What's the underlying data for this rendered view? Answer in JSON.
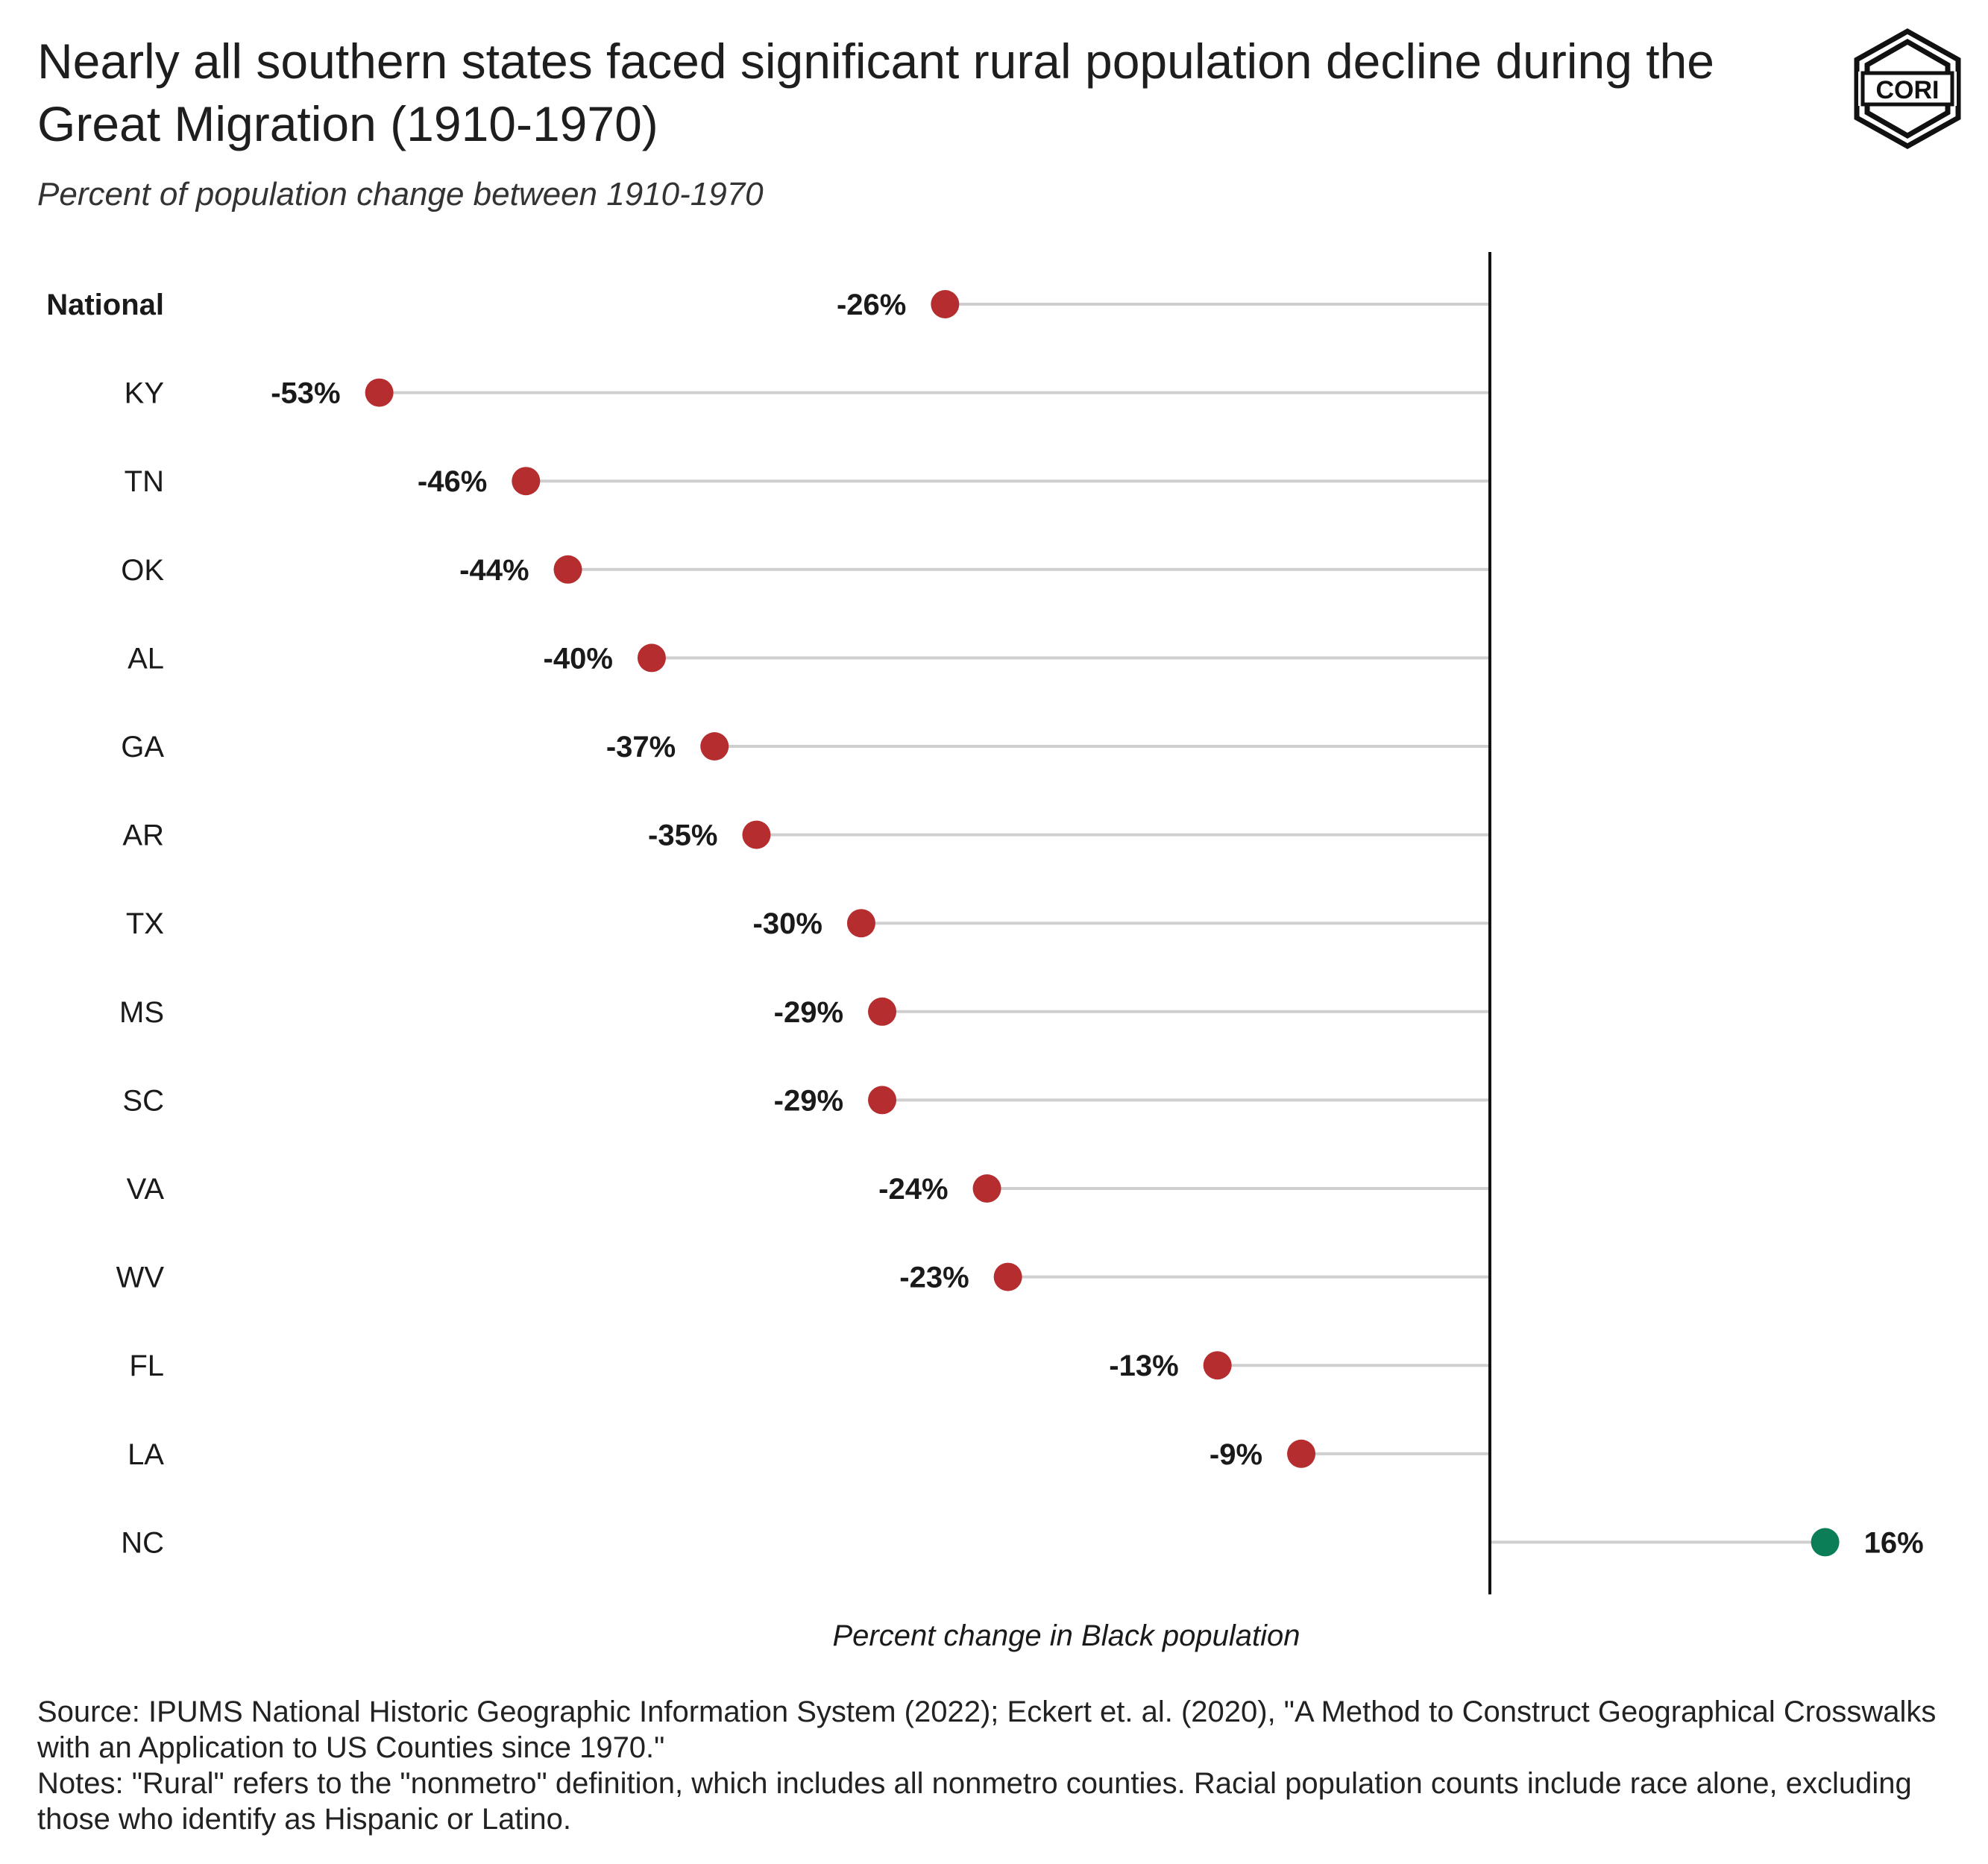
{
  "title": "Nearly all southern states faced significant rural population decline during the Great Migration (1910-1970)",
  "subtitle": "Percent of population change between 1910-1970",
  "logo_text": "CORI",
  "colors": {
    "negative": "#b52d2f",
    "positive": "#0b7d57",
    "gridline": "#cfcfcf",
    "zero_line": "#111111",
    "text": "#1a1a1a"
  },
  "chart_data": {
    "type": "dot",
    "xlabel": "Percent change in Black population",
    "categories": [
      "National",
      "KY",
      "TN",
      "OK",
      "AL",
      "GA",
      "AR",
      "TX",
      "MS",
      "SC",
      "VA",
      "WV",
      "FL",
      "LA",
      "NC"
    ],
    "values": [
      -26,
      -53,
      -46,
      -44,
      -40,
      -37,
      -35,
      -30,
      -29,
      -29,
      -24,
      -23,
      -13,
      -9,
      16
    ],
    "labels": [
      "-26%",
      "-53%",
      "-46%",
      "-44%",
      "-40%",
      "-37%",
      "-35%",
      "-30%",
      "-29%",
      "-29%",
      "-24%",
      "-23%",
      "-13%",
      "-9%",
      "16%"
    ],
    "bold_categories": [
      "National"
    ],
    "xlim": [
      -59,
      20
    ],
    "grid": false
  },
  "footer": {
    "source": "Source: IPUMS National Historic Geographic Information System (2022); Eckert et. al. (2020), \"A Method to Construct Geographical Crosswalks with an Application to US Counties since 1970.\"",
    "notes": "Notes: \"Rural\" refers to the \"nonmetro\" definition, which includes all nonmetro counties. Racial population counts include race alone, excluding those who identify as Hispanic or Latino."
  }
}
